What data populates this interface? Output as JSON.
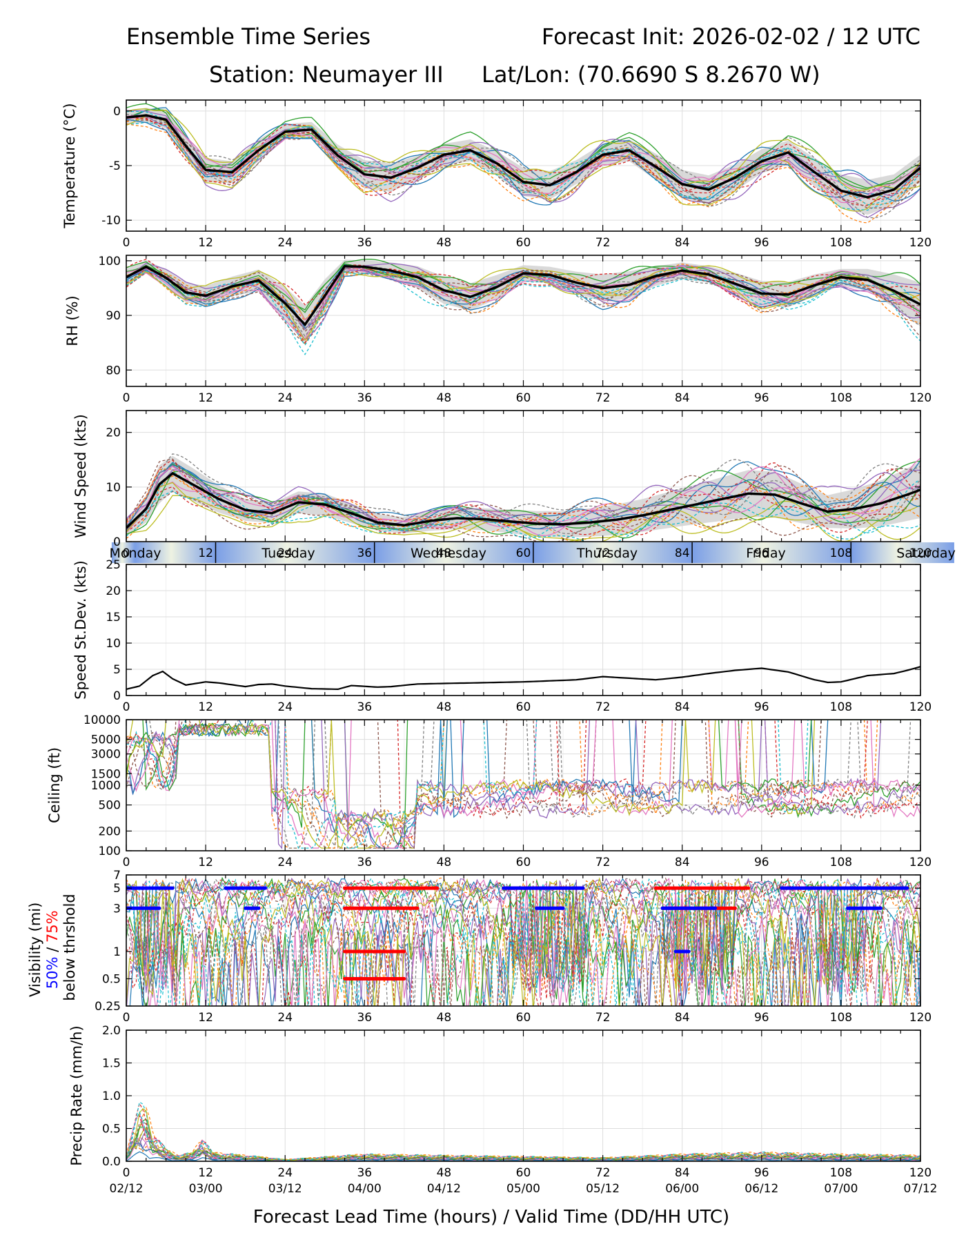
{
  "header": {
    "title_left": "Ensemble Time Series",
    "title_right": "Forecast Init: 2026-02-02 / 12 UTC",
    "station": "Station: Neumayer III",
    "latlon": "Lat/Lon: (70.6690 S 8.2670 W)"
  },
  "x_axis": {
    "label": "Forecast Lead Time (hours) / Valid Time (DD/HH UTC)",
    "range": [
      0,
      120
    ],
    "ticks": [
      "0",
      "12",
      "24",
      "36",
      "48",
      "60",
      "72",
      "84",
      "96",
      "108",
      "120"
    ],
    "valid_times": [
      "02/12",
      "03/00",
      "03/12",
      "04/00",
      "04/12",
      "05/00",
      "05/12",
      "06/00",
      "06/12",
      "07/00",
      "07/12"
    ]
  },
  "day_band": [
    "Monday",
    "Tuesday",
    "Wednesday",
    "Thursday",
    "Friday",
    "Saturday"
  ],
  "visibility_label_parts": {
    "line1": "Visibility (mi)",
    "p50": "50%",
    "sep": " / ",
    "p75": "75%",
    "line3": "below thrshold"
  },
  "colors": {
    "mean": "#000000",
    "spread": "#cfcfcf",
    "p50": "#0000ff",
    "p75": "#ff0000",
    "members": [
      "#1f77b4",
      "#ff7f0e",
      "#2ca02c",
      "#d62728",
      "#9467bd",
      "#8c564b",
      "#e377c2",
      "#7f7f7f",
      "#bcbd22",
      "#17becf"
    ]
  },
  "chart_data": [
    {
      "id": "temperature",
      "type": "line",
      "ylabel": "Temperature (°C)",
      "ylim": [
        -11,
        1
      ],
      "yticks": [
        "0",
        "-5",
        "-10"
      ],
      "ytick_values": [
        0,
        -5,
        -10
      ],
      "x": [
        0,
        3,
        6,
        9,
        12,
        16,
        20,
        24,
        28,
        32,
        36,
        40,
        44,
        48,
        52,
        56,
        60,
        64,
        68,
        72,
        76,
        80,
        84,
        88,
        92,
        96,
        100,
        104,
        108,
        112,
        116,
        120
      ],
      "mean": [
        -0.6,
        -0.4,
        -0.8,
        -3.2,
        -5.4,
        -5.6,
        -3.6,
        -1.9,
        -1.7,
        -4.1,
        -5.8,
        -6.1,
        -5.2,
        -4.0,
        -3.6,
        -4.8,
        -6.5,
        -6.8,
        -5.6,
        -4.0,
        -3.6,
        -5.1,
        -6.7,
        -7.2,
        -6.1,
        -4.6,
        -3.8,
        -5.6,
        -7.3,
        -7.9,
        -7.2,
        -5.2
      ],
      "spread": [
        0.6,
        0.7,
        0.8,
        1.0,
        1.1,
        1.0,
        1.0,
        0.7,
        0.7,
        1.0,
        1.3,
        1.3,
        1.1,
        1.0,
        1.0,
        1.1,
        1.3,
        1.3,
        1.1,
        1.0,
        1.0,
        1.2,
        1.3,
        1.3,
        1.2,
        1.1,
        1.1,
        1.3,
        1.5,
        1.6,
        1.4,
        1.2
      ]
    },
    {
      "id": "rh",
      "type": "line",
      "ylabel": "RH (%)",
      "ylim": [
        77,
        101
      ],
      "yticks": [
        "100",
        "90",
        "80"
      ],
      "ytick_values": [
        100,
        90,
        80
      ],
      "x": [
        0,
        3,
        6,
        9,
        12,
        16,
        20,
        24,
        27,
        30,
        33,
        36,
        40,
        44,
        48,
        52,
        56,
        60,
        64,
        68,
        72,
        76,
        80,
        84,
        88,
        92,
        96,
        100,
        104,
        108,
        112,
        116,
        120
      ],
      "mean": [
        97.0,
        98.9,
        96.9,
        94.2,
        93.6,
        95.3,
        96.4,
        92.2,
        88.3,
        93.6,
        99.0,
        98.9,
        98.2,
        97.0,
        94.6,
        93.4,
        95.2,
        97.7,
        97.4,
        96.0,
        95.0,
        95.6,
        97.2,
        98.2,
        97.5,
        95.8,
        94.0,
        93.8,
        95.5,
        97.0,
        96.5,
        94.5,
        92.0
      ],
      "spread": [
        1.5,
        1.2,
        1.5,
        1.8,
        1.8,
        1.8,
        2.0,
        3.0,
        3.5,
        3.0,
        1.2,
        1.2,
        1.5,
        2.0,
        2.5,
        2.5,
        2.2,
        1.5,
        1.5,
        2.0,
        2.5,
        2.5,
        1.8,
        1.5,
        1.5,
        2.0,
        2.3,
        2.3,
        2.0,
        1.5,
        2.0,
        3.0,
        4.0
      ]
    },
    {
      "id": "wind",
      "type": "line",
      "ylabel": "Wind Speed (kts)",
      "ylim": [
        0,
        24
      ],
      "yticks": [
        "20",
        "10",
        "0"
      ],
      "ytick_values": [
        20,
        10,
        0
      ],
      "x": [
        0,
        3,
        5,
        7,
        10,
        14,
        18,
        22,
        26,
        30,
        34,
        38,
        42,
        46,
        50,
        54,
        58,
        62,
        66,
        70,
        74,
        78,
        82,
        86,
        90,
        94,
        98,
        102,
        106,
        110,
        114,
        118,
        120
      ],
      "mean": [
        2.5,
        6.0,
        10.5,
        12.5,
        10.5,
        7.8,
        5.8,
        5.2,
        7.2,
        6.8,
        5.2,
        3.5,
        3.0,
        3.8,
        4.3,
        4.1,
        3.7,
        3.3,
        3.2,
        3.5,
        4.0,
        4.8,
        5.8,
        6.8,
        7.8,
        8.8,
        8.6,
        7.0,
        5.5,
        6.0,
        7.0,
        8.6,
        9.5
      ],
      "spread": [
        1.5,
        2.5,
        3.5,
        3.2,
        3.0,
        2.5,
        2.0,
        1.8,
        2.0,
        2.0,
        1.8,
        1.5,
        1.5,
        1.8,
        2.0,
        2.0,
        2.2,
        2.3,
        2.4,
        2.6,
        2.8,
        3.0,
        3.3,
        3.6,
        4.0,
        4.3,
        4.2,
        3.6,
        3.0,
        3.6,
        4.2,
        4.8,
        5.2
      ]
    },
    {
      "id": "speed_stdev",
      "type": "line",
      "ylabel": "Speed St.Dev. (kts)",
      "ylim": [
        0,
        25
      ],
      "yticks": [
        "25",
        "20",
        "15",
        "10",
        "5",
        "0"
      ],
      "ytick_values": [
        25,
        20,
        15,
        10,
        5,
        0
      ],
      "x": [
        0,
        2,
        4,
        5.5,
        7,
        9,
        12,
        14,
        18,
        20,
        22,
        24,
        28,
        32,
        34,
        38,
        40,
        44,
        48,
        52,
        56,
        60,
        64,
        68,
        72,
        76,
        80,
        84,
        88,
        92,
        96,
        100,
        104,
        106,
        108,
        112,
        116,
        118,
        120
      ],
      "values": [
        1.2,
        1.8,
        3.8,
        4.6,
        3.2,
        2.0,
        2.6,
        2.4,
        1.7,
        2.1,
        2.2,
        1.8,
        1.3,
        1.2,
        1.9,
        1.6,
        1.7,
        2.2,
        2.3,
        2.4,
        2.5,
        2.6,
        2.8,
        3.0,
        3.6,
        3.3,
        3.0,
        3.5,
        4.2,
        4.8,
        5.2,
        4.5,
        3.0,
        2.5,
        2.6,
        3.8,
        4.2,
        4.8,
        5.5
      ]
    },
    {
      "id": "ceiling",
      "type": "line",
      "scale": "log",
      "ylabel": "Ceiling (ft)",
      "ylim": [
        100,
        10000
      ],
      "yticks": [
        "10000",
        "5000",
        "3000",
        "1500",
        "1000",
        "500",
        "200",
        "100"
      ],
      "ytick_values": [
        10000,
        5000,
        3000,
        1500,
        1000,
        500,
        200,
        100
      ]
    },
    {
      "id": "visibility",
      "type": "line",
      "scale": "log",
      "ylim": [
        0.25,
        7
      ],
      "yticks": [
        "7",
        "5",
        "3",
        "1",
        "0.5",
        "0.25"
      ],
      "ytick_values": [
        7,
        5,
        3,
        1,
        0.5,
        0.25
      ],
      "p50_segments": [
        {
          "level": 5,
          "x": [
            0,
            7
          ]
        },
        {
          "level": 3,
          "x": [
            0,
            5
          ]
        },
        {
          "level": 5,
          "x": [
            15,
            21
          ]
        },
        {
          "level": 3,
          "x": [
            18,
            20
          ]
        },
        {
          "level": 5,
          "x": [
            57,
            69
          ]
        },
        {
          "level": 3,
          "x": [
            62,
            66
          ]
        },
        {
          "level": 3,
          "x": [
            81,
            89
          ]
        },
        {
          "level": 1,
          "x": [
            83,
            85
          ]
        },
        {
          "level": 5,
          "x": [
            99,
            118
          ]
        },
        {
          "level": 3,
          "x": [
            109,
            114
          ]
        }
      ],
      "p75_segments": [
        {
          "level": 5,
          "x": [
            33,
            47
          ]
        },
        {
          "level": 3,
          "x": [
            33,
            44
          ]
        },
        {
          "level": 1,
          "x": [
            33,
            42
          ]
        },
        {
          "level": 0.5,
          "x": [
            33,
            42
          ]
        },
        {
          "level": 5,
          "x": [
            57,
            69
          ]
        },
        {
          "level": 5,
          "x": [
            80,
            94
          ]
        },
        {
          "level": 3,
          "x": [
            81,
            92
          ]
        },
        {
          "level": 5,
          "x": [
            99,
            118
          ]
        }
      ]
    },
    {
      "id": "precip",
      "type": "line",
      "ylabel": "Precip Rate (mm/h)",
      "ylim": [
        0,
        2
      ],
      "yticks": [
        "2.0",
        "1.5",
        "1.0",
        "0.5",
        "0.0"
      ],
      "ytick_values": [
        2.0,
        1.5,
        1.0,
        0.5,
        0.0
      ],
      "x": [
        0,
        1,
        2,
        3,
        4,
        6,
        8,
        10,
        11.5,
        13,
        16,
        20,
        24,
        36,
        48,
        60,
        72,
        84,
        96,
        108,
        120
      ],
      "max_member": [
        0.1,
        0.6,
        0.95,
        0.9,
        0.5,
        0.2,
        0.1,
        0.15,
        0.4,
        0.15,
        0.12,
        0.08,
        0.03,
        0.12,
        0.1,
        0.08,
        0.06,
        0.12,
        0.15,
        0.12,
        0.1
      ]
    }
  ]
}
